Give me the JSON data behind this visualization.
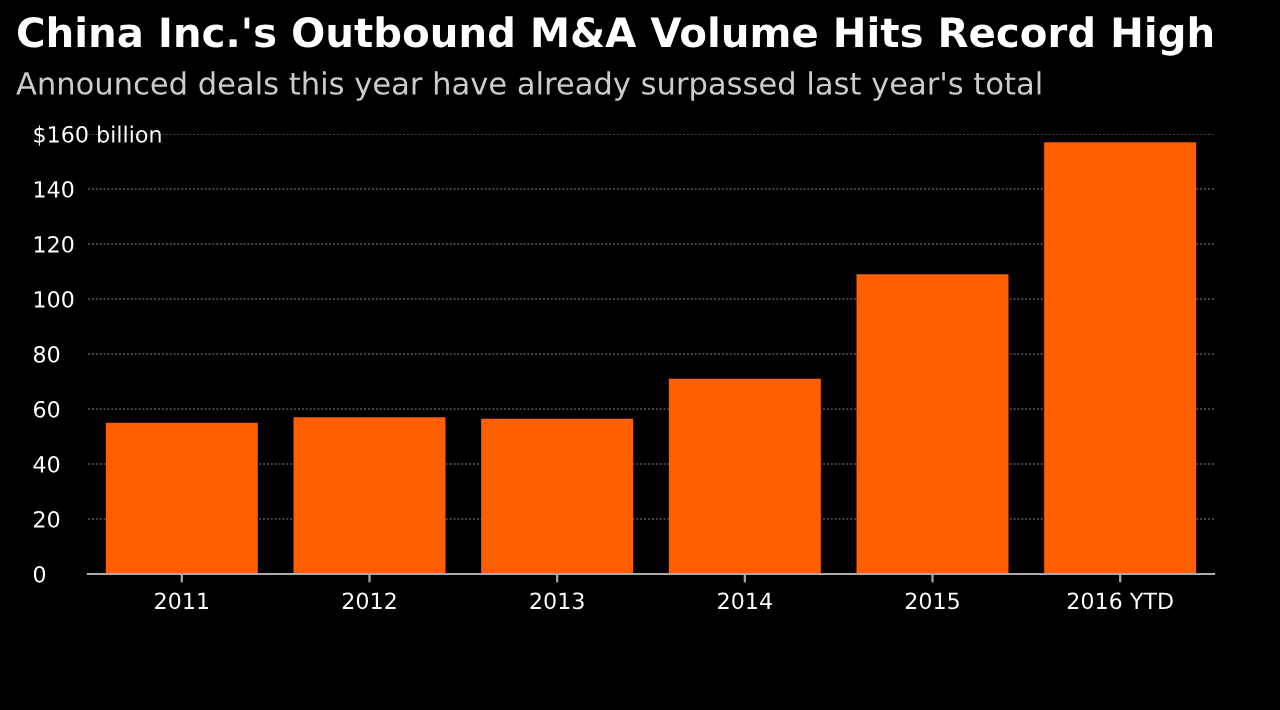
{
  "chart_data": {
    "type": "bar",
    "title": "China Inc.'s Outbound M&A Volume Hits Record High",
    "subtitle": "Announced deals this year have already surpassed last year's total",
    "categories": [
      "2011",
      "2012",
      "2013",
      "2014",
      "2015",
      "2016 YTD"
    ],
    "values": [
      55,
      57,
      56.5,
      71,
      109,
      157
    ],
    "color": "#ff5f00",
    "ylim": [
      0,
      160
    ],
    "yticks": [
      0,
      20,
      40,
      60,
      80,
      100,
      120,
      140,
      {
        "value": 160,
        "label": "$160 billion"
      }
    ],
    "grid": "y"
  }
}
